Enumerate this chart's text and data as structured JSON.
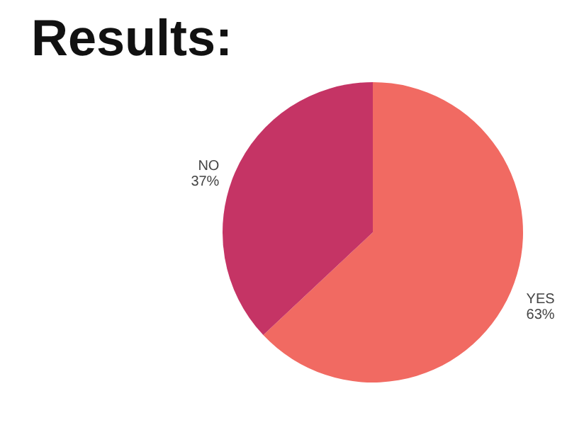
{
  "chart_data": {
    "type": "pie",
    "title": "Results:",
    "categories": [
      "YES",
      "NO"
    ],
    "values": [
      63,
      37
    ],
    "value_labels": [
      "63%",
      "37%"
    ],
    "colors": [
      "#f16a62",
      "#c53465"
    ]
  }
}
